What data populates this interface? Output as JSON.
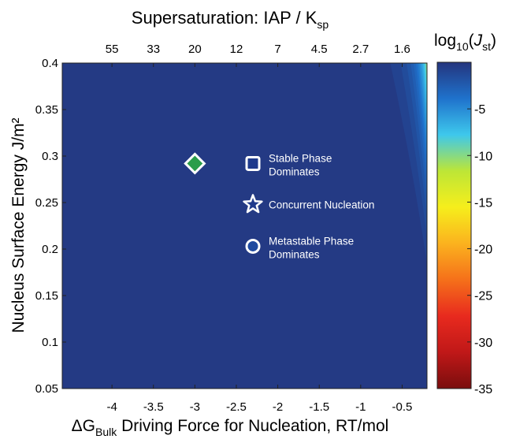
{
  "chart_data": {
    "type": "heatmap",
    "title_top_prefix": "Supersaturation: IAP / K",
    "title_top_sub": "sp",
    "xlabel_prefix": "ΔG",
    "xlabel_sub": "Bulk",
    "xlabel_suffix": " Driving Force for Nucleation, RT/mol",
    "ylabel": "Nucleus Surface Energy J/m²",
    "colorbar_label_prefix": "log",
    "colorbar_label_sub": "10",
    "colorbar_label_paren_open": "(",
    "colorbar_label_italic": "J",
    "colorbar_label_italic_sub": "st",
    "colorbar_label_paren_close": ")",
    "xlim": [
      -4.6,
      -0.2
    ],
    "ylim": [
      0.05,
      0.4
    ],
    "x_ticks": [
      -4,
      -3.5,
      -3,
      -2.5,
      -2,
      -1.5,
      -1,
      -0.5
    ],
    "x_tick_labels": [
      "-4",
      "-3.5",
      "-3",
      "-2.5",
      "-2",
      "-1.5",
      "-1",
      "-0.5"
    ],
    "y_ticks": [
      0.05,
      0.1,
      0.15,
      0.2,
      0.25,
      0.3,
      0.35,
      0.4
    ],
    "y_tick_labels": [
      "0.05",
      "0.1",
      "0.15",
      "0.2",
      "0.25",
      "0.3",
      "0.35",
      "0.4"
    ],
    "top_ticks": [
      -4.0,
      -3.5,
      -3.0,
      -2.5,
      -2.0,
      -1.5,
      -1.0,
      -0.5
    ],
    "top_tick_labels": [
      "55",
      "33",
      "20",
      "12",
      "7",
      "4.5",
      "2.7",
      "1.6"
    ],
    "colorbar_range": [
      -35,
      0
    ],
    "colorbar_ticks": [
      -5,
      -10,
      -15,
      -20,
      -25,
      -30,
      -35
    ],
    "colorbar_tick_labels": [
      "-5",
      "-10",
      "-15",
      "-20",
      "-25",
      "-30",
      "-35"
    ],
    "colormap": [
      "#7a0d0d",
      "#c01818",
      "#e82a1e",
      "#f5701a",
      "#fbb21e",
      "#f6ee1c",
      "#bde636",
      "#3ec8ec",
      "#1f72cc",
      "#24357e"
    ],
    "background_color": "#25387f",
    "markers": [
      {
        "shape": "diamond",
        "x": -3.0,
        "y": 0.292,
        "color": "#2a9d4a",
        "label": ""
      },
      {
        "shape": "square",
        "x": -2.3,
        "y": 0.292,
        "color": "#1f3a8c",
        "label": [
          "Stable Phase",
          "Dominates"
        ]
      },
      {
        "shape": "star",
        "x": -2.3,
        "y": 0.248,
        "color": "#1f3a8c",
        "label": [
          "Concurrent Nucleation"
        ]
      },
      {
        "shape": "circle",
        "x": -2.3,
        "y": 0.203,
        "color": "#1f4aa0",
        "label": [
          "Metastable Phase",
          "Dominates"
        ]
      }
    ]
  }
}
